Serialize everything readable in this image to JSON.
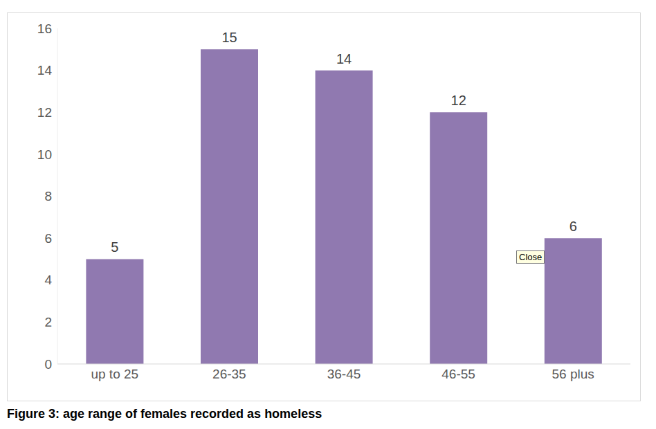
{
  "chart_data": {
    "type": "bar",
    "title": "Figure 3: age range of females recorded as homeless",
    "categories": [
      "up to 25",
      "26-35",
      "36-45",
      "46-55",
      "56 plus"
    ],
    "values": [
      5,
      15,
      14,
      12,
      6
    ],
    "color": "#9079b0",
    "ylim": [
      0,
      16
    ],
    "yticks": [
      0,
      2,
      4,
      6,
      8,
      10,
      12,
      14,
      16
    ],
    "grid": false,
    "data_labels": true,
    "annotations": [
      "Close"
    ]
  }
}
